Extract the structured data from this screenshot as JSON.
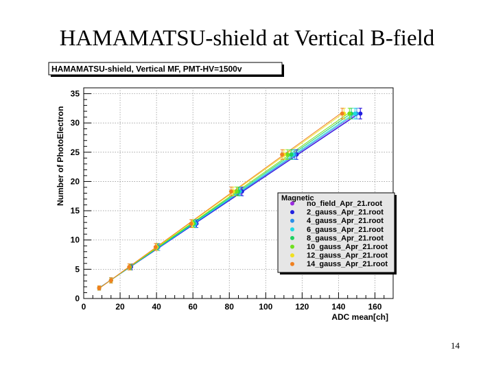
{
  "slide": {
    "title": "HAMAMATSU-shield at Vertical B-field",
    "page_number": "14"
  },
  "chart_data": {
    "type": "scatter",
    "title": "HAMAMATSU-shield, Vertical MF, PMT-HV=1500v",
    "xlabel": "ADC mean[ch]",
    "ylabel": "Number of PhotoElectron",
    "xlim": [
      0,
      170
    ],
    "ylim": [
      0,
      36
    ],
    "xticks": [
      0,
      20,
      40,
      60,
      80,
      100,
      120,
      140,
      160
    ],
    "yticks": [
      0,
      5,
      10,
      15,
      20,
      25,
      30,
      35
    ],
    "grid": true,
    "legend_title": "Magnetic",
    "legend_position": "bottom-right",
    "photoelectron_levels": [
      1.8,
      3.1,
      5.4,
      8.8,
      12.8,
      18.3,
      24.6,
      31.6
    ],
    "series": [
      {
        "name": "no_field_Apr_21.root",
        "color": "#9a2be0",
        "x": [
          8.5,
          15,
          26,
          41,
          61.5,
          86.5,
          116,
          152
        ]
      },
      {
        "name": "2_gauss_Apr_21.root",
        "color": "#2020e0",
        "x": [
          8.5,
          15,
          26,
          41,
          62,
          87,
          117,
          152
        ]
      },
      {
        "name": "4_gauss_Apr_21.root",
        "color": "#2a8ee8",
        "x": [
          8.5,
          15,
          25.5,
          41,
          61.5,
          86,
          116,
          150
        ]
      },
      {
        "name": "6_gauss_Apr_21.root",
        "color": "#20d8e0",
        "x": [
          8.5,
          15,
          25.5,
          40.5,
          61,
          85.5,
          115,
          149
        ]
      },
      {
        "name": "8_gauss_Apr_21.root",
        "color": "#20d060",
        "x": [
          8.5,
          15,
          25.5,
          40.5,
          60.5,
          85,
          114,
          147
        ]
      },
      {
        "name": "10_gauss_Apr_21.root",
        "color": "#70e020",
        "x": [
          8.5,
          15,
          25.5,
          40,
          60,
          84,
          112,
          146
        ]
      },
      {
        "name": "12_gauss_Apr_21.root",
        "color": "#f0e020",
        "x": [
          8.5,
          15,
          25,
          40,
          59.5,
          82,
          110,
          143
        ]
      },
      {
        "name": "14_gauss_Apr_21.root",
        "color": "#f08020",
        "x": [
          8.5,
          15,
          25,
          39.5,
          59,
          81,
          109,
          142
        ]
      }
    ]
  }
}
